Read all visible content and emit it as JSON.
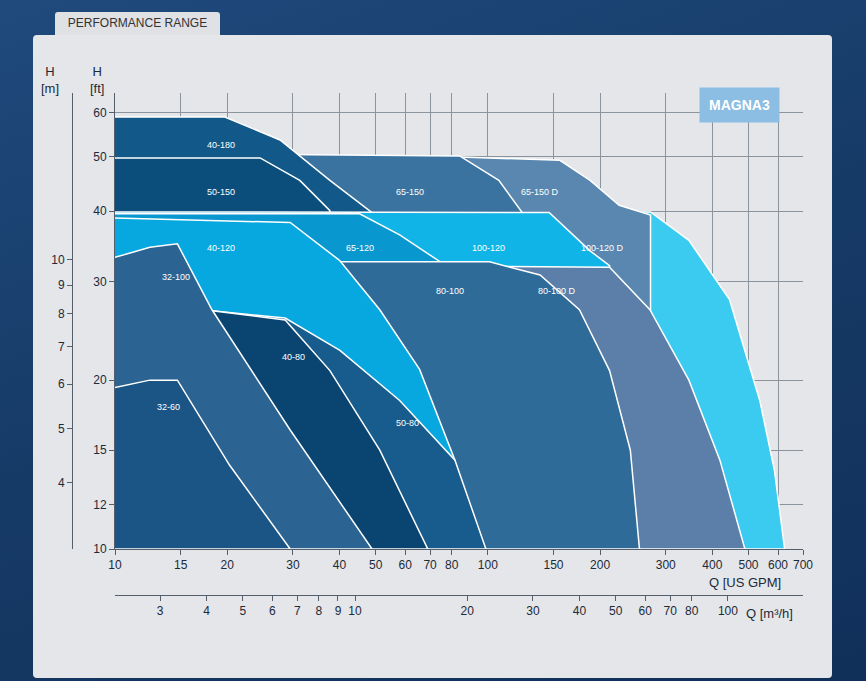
{
  "chart_data": {
    "type": "area",
    "title": "PERFORMANCE RANGE",
    "annotations": [
      "MAGNA3"
    ],
    "x_label": "Q [US GPM]",
    "x2_label": "Q [m³/h]",
    "y_label": "H [ft]",
    "y2_label": "H [m]",
    "log": true,
    "grid": true,
    "xlim": [
      10,
      700
    ],
    "xticks": [
      10,
      15,
      20,
      30,
      40,
      50,
      60,
      70,
      80,
      100,
      150,
      200,
      300,
      400,
      500,
      600,
      700
    ],
    "x2lim": [
      2.2712,
      158.99
    ],
    "x2ticks": [
      3,
      4,
      5,
      6,
      7,
      8,
      9,
      10,
      20,
      30,
      40,
      50,
      60,
      70,
      80,
      100
    ],
    "ylim": [
      10,
      65
    ],
    "yticks": [
      10,
      12,
      15,
      20,
      30,
      40,
      50,
      60
    ],
    "y2lim": [
      3.048,
      19.812
    ],
    "y2ticks": [
      4,
      5,
      6,
      7,
      8,
      9,
      10
    ],
    "series": [
      {
        "name": "100-120 D",
        "color": "#3ccbf0",
        "x": [
          10,
          273,
          346,
          445,
          536,
          587,
          625,
          10
        ],
        "y": [
          39.9,
          39.9,
          35.5,
          27.8,
          18.4,
          13.8,
          10,
          10
        ]
      },
      {
        "name": "65-150 D",
        "color": "#5a87b0",
        "x": [
          10,
          84,
          156,
          188,
          225,
          273,
          273,
          10
        ],
        "y": [
          50,
          50,
          49.3,
          45.4,
          41,
          39.4,
          10,
          10
        ]
      },
      {
        "name": "65-150",
        "color": "#3a72a0",
        "x": [
          10,
          84,
          107,
          125,
          125,
          10
        ],
        "y": [
          50.8,
          50.2,
          45.4,
          39.4,
          10,
          10
        ]
      },
      {
        "name": "40-180",
        "color": "#12598a",
        "x": [
          10,
          19.7,
          27.7,
          37.7,
          49.8,
          49.8,
          10
        ],
        "y": [
          58.9,
          58.9,
          53.6,
          45.4,
          39.4,
          10,
          10
        ]
      },
      {
        "name": "50-150",
        "color": "#0b4e7c",
        "x": [
          10,
          24.5,
          31.3,
          37.7,
          37.7,
          10
        ],
        "y": [
          49.8,
          49.8,
          45.4,
          40.1,
          10,
          10
        ]
      },
      {
        "name": "100-120",
        "color": "#10b4e6",
        "x": [
          10,
          146,
          188,
          212,
          212,
          10
        ],
        "y": [
          39.9,
          39.8,
          34,
          32,
          10,
          10
        ]
      },
      {
        "name": "65-120",
        "color": "#0898cf",
        "x": [
          10,
          45.3,
          58,
          74.5,
          101,
          101,
          10
        ],
        "y": [
          39.6,
          39.6,
          36.3,
          32.5,
          32.5,
          10,
          10
        ]
      },
      {
        "name": "80-100 D",
        "color": "#5b7fa9",
        "x": [
          10,
          212,
          272,
          346,
          419,
          489,
          10
        ],
        "y": [
          32.3,
          31.8,
          26.7,
          20,
          14.4,
          10,
          10
        ]
      },
      {
        "name": "80-100",
        "color": "#2f6b99",
        "x": [
          10,
          101,
          138,
          176,
          212,
          241,
          255,
          10
        ],
        "y": [
          32.5,
          32.5,
          30.8,
          26.7,
          20.8,
          15,
          10,
          10
        ]
      },
      {
        "name": "40-120",
        "color": "#06a8df",
        "x": [
          10,
          29.5,
          40,
          51.3,
          65.6,
          81.6,
          88,
          10
        ],
        "y": [
          38.9,
          38.2,
          32.7,
          26.7,
          20.9,
          14.4,
          10,
          10
        ]
      },
      {
        "name": "50-80",
        "color": "#175c8c",
        "x": [
          10,
          18.2,
          28.6,
          40.1,
          58,
          81.6,
          98.8,
          10
        ],
        "y": [
          26.6,
          26.6,
          25.8,
          22.6,
          18.4,
          14.4,
          10,
          10
        ]
      },
      {
        "name": "40-80",
        "color": "#0a4470",
        "x": [
          10,
          18.2,
          28.6,
          37.7,
          51.3,
          69,
          10
        ],
        "y": [
          26.6,
          26.6,
          25.6,
          20.8,
          15,
          10,
          10
        ]
      },
      {
        "name": "32-100",
        "color": "#2b6392",
        "x": [
          10,
          12.4,
          14.7,
          18.2,
          29.5,
          48.9,
          10
        ],
        "y": [
          33.1,
          34.5,
          35,
          26.7,
          16.3,
          10,
          10
        ]
      },
      {
        "name": "32-60",
        "color": "#1b5585",
        "x": [
          10,
          12.4,
          14.7,
          20.3,
          29.5,
          10
        ],
        "y": [
          19.4,
          20,
          20,
          14.1,
          10,
          10
        ]
      }
    ]
  }
}
